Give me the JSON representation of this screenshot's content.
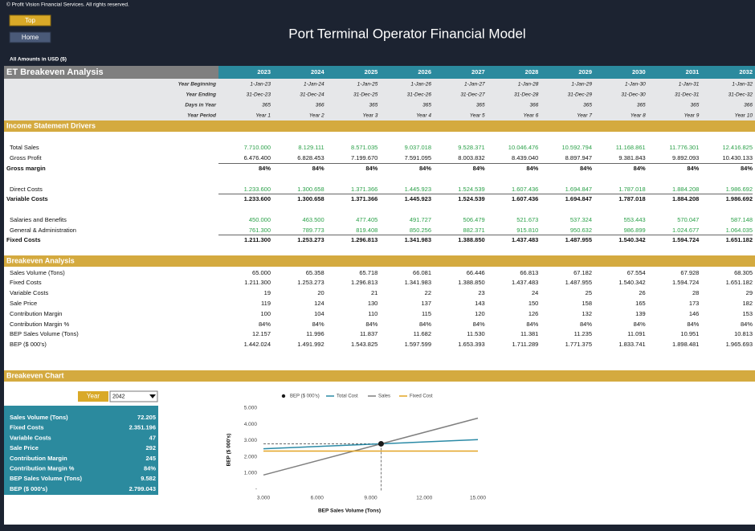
{
  "header": {
    "copyright": "© Profit Vision Financial Services. All rights reserved.",
    "buttons": [
      "Top",
      "Home"
    ],
    "title": "Port Terminal Operator Financial Model",
    "units": "All Amounts in  USD ($)"
  },
  "table": {
    "title": "ET Breakeven Analysis",
    "years": [
      "2023",
      "2024",
      "2025",
      "2026",
      "2027",
      "2028",
      "2029",
      "2030",
      "2031",
      "2032"
    ],
    "info_rows": [
      {
        "label": "Year Beginning",
        "values": [
          "1-Jan-23",
          "1-Jan-24",
          "1-Jan-25",
          "1-Jan-26",
          "1-Jan-27",
          "1-Jan-28",
          "1-Jan-29",
          "1-Jan-30",
          "1-Jan-31",
          "1-Jan-32"
        ]
      },
      {
        "label": "Year Ending",
        "values": [
          "31-Dec-23",
          "31-Dec-24",
          "31-Dec-25",
          "31-Dec-26",
          "31-Dec-27",
          "31-Dec-28",
          "31-Dec-29",
          "31-Dec-30",
          "31-Dec-31",
          "31-Dec-32"
        ]
      },
      {
        "label": "Days in Year",
        "values": [
          "365",
          "366",
          "365",
          "365",
          "365",
          "366",
          "365",
          "365",
          "365",
          "366"
        ]
      },
      {
        "label": "Year Period",
        "values": [
          "Year 1",
          "Year 2",
          "Year 3",
          "Year 4",
          "Year 5",
          "Year 6",
          "Year 7",
          "Year 8",
          "Year 9",
          "Year 10"
        ]
      }
    ],
    "sections": [
      {
        "title": "Income Statement Drivers",
        "rows": [
          {
            "label": "Total Sales",
            "color": "#2aa048",
            "values": [
              "7.710.000",
              "8.129.111",
              "8.571.035",
              "9.037.018",
              "9.528.371",
              "10.046.476",
              "10.592.794",
              "11.168.861",
              "11.776.301",
              "12.416.825"
            ]
          },
          {
            "label": "Gross Profit",
            "values": [
              "6.476.400",
              "6.828.453",
              "7.199.670",
              "7.591.095",
              "8.003.832",
              "8.439.040",
              "8.897.947",
              "9.381.843",
              "9.892.093",
              "10.430.133"
            ]
          },
          {
            "label": "Gross margin",
            "total": true,
            "values": [
              "84%",
              "84%",
              "84%",
              "84%",
              "84%",
              "84%",
              "84%",
              "84%",
              "84%",
              "84%"
            ]
          },
          {
            "label": "Direct Costs",
            "color": "#2aa048",
            "values": [
              "1.233.600",
              "1.300.658",
              "1.371.366",
              "1.445.923",
              "1.524.539",
              "1.607.436",
              "1.694.847",
              "1.787.018",
              "1.884.208",
              "1.986.692"
            ]
          },
          {
            "label": "Variable Costs",
            "total": true,
            "values": [
              "1.233.600",
              "1.300.658",
              "1.371.366",
              "1.445.923",
              "1.524.539",
              "1.607.436",
              "1.694.847",
              "1.787.018",
              "1.884.208",
              "1.986.692"
            ]
          },
          {
            "label": "Salaries and Benefits",
            "color": "#2aa048",
            "values": [
              "450.000",
              "463.500",
              "477.405",
              "491.727",
              "506.479",
              "521.673",
              "537.324",
              "553.443",
              "570.047",
              "587.148"
            ]
          },
          {
            "label": "General & Administration",
            "color": "#2aa048",
            "values": [
              "761.300",
              "789.773",
              "819.408",
              "850.256",
              "882.371",
              "915.810",
              "950.632",
              "986.899",
              "1.024.677",
              "1.064.035"
            ]
          },
          {
            "label": "Fixed Costs",
            "total": true,
            "values": [
              "1.211.300",
              "1.253.273",
              "1.296.813",
              "1.341.983",
              "1.388.850",
              "1.437.483",
              "1.487.955",
              "1.540.342",
              "1.594.724",
              "1.651.182"
            ]
          }
        ]
      },
      {
        "title": "Breakeven Analysis",
        "rows": [
          {
            "label": "Sales Volume (Tons)",
            "values": [
              "65.000",
              "65.358",
              "65.718",
              "66.081",
              "66.446",
              "66.813",
              "67.182",
              "67.554",
              "67.928",
              "68.305"
            ]
          },
          {
            "label": "Fixed Costs",
            "values": [
              "1.211.300",
              "1.253.273",
              "1.296.813",
              "1.341.983",
              "1.388.850",
              "1.437.483",
              "1.487.955",
              "1.540.342",
              "1.594.724",
              "1.651.182"
            ]
          },
          {
            "label": "Variable Costs",
            "values": [
              "19",
              "20",
              "21",
              "22",
              "23",
              "24",
              "25",
              "26",
              "28",
              "29"
            ]
          },
          {
            "label": "Sale Price",
            "values": [
              "119",
              "124",
              "130",
              "137",
              "143",
              "150",
              "158",
              "165",
              "173",
              "182"
            ]
          },
          {
            "label": "Contribution Margin",
            "values": [
              "100",
              "104",
              "110",
              "115",
              "120",
              "126",
              "132",
              "139",
              "146",
              "153"
            ]
          },
          {
            "label": "Contribution Margin %",
            "values": [
              "84%",
              "84%",
              "84%",
              "84%",
              "84%",
              "84%",
              "84%",
              "84%",
              "84%",
              "84%"
            ]
          },
          {
            "label": "BEP Sales Volume (Tons)",
            "values": [
              "12.157",
              "11.996",
              "11.837",
              "11.682",
              "11.530",
              "11.381",
              "11.235",
              "11.091",
              "10.951",
              "10.813"
            ]
          },
          {
            "label": "BEP ($ 000's)",
            "values": [
              "1.442.024",
              "1.491.992",
              "1.543.825",
              "1.597.599",
              "1.653.393",
              "1.711.289",
              "1.771.375",
              "1.833.741",
              "1.898.481",
              "1.965.693"
            ]
          }
        ]
      }
    ]
  },
  "chart_panel": {
    "title": "Breakeven Chart",
    "year_label": "Year",
    "year": "2042",
    "summary": [
      {
        "label": "Sales Volume (Tons)",
        "value": "72.205"
      },
      {
        "label": "Fixed Costs",
        "value": "2.351.196"
      },
      {
        "label": "Variable Costs",
        "value": "47"
      },
      {
        "label": "Sale Price",
        "value": "292"
      },
      {
        "label": "Contribution Margin",
        "value": "245"
      },
      {
        "label": "Contribution Margin %",
        "value": "84%"
      },
      {
        "label": "BEP Sales Volume (Tons)",
        "value": "9.582"
      },
      {
        "label": "BEP ($ 000's)",
        "value": "2.799.043"
      }
    ]
  },
  "chart_data": {
    "type": "line",
    "x_label": "BEP Sales Volume (Tons)",
    "y_label": "BEP ($ 000's)",
    "xlim": [
      3000,
      15000
    ],
    "ylim": [
      0,
      5000
    ],
    "xticks": [
      {
        "value": 3000,
        "label": "3.000"
      },
      {
        "value": 6000,
        "label": "6.000"
      },
      {
        "value": 9000,
        "label": "9.000"
      },
      {
        "value": 12000,
        "label": "12.000"
      },
      {
        "value": 15000,
        "label": "15.000"
      }
    ],
    "yticks": [
      {
        "value": 0,
        "label": "-"
      },
      {
        "value": 1000,
        "label": "1.000"
      },
      {
        "value": 2000,
        "label": "2.000"
      },
      {
        "value": 3000,
        "label": "3.000"
      },
      {
        "value": 4000,
        "label": "4.000"
      },
      {
        "value": 5000,
        "label": "5.000"
      }
    ],
    "series": [
      {
        "name": "BEP ($ 000's)",
        "color": "#1a1a1a",
        "x": [
          9582
        ],
        "values": [
          2799
        ]
      },
      {
        "name": "Total Cost",
        "color": "#2b8aa6",
        "x": [
          3000,
          15000
        ],
        "values": [
          2492,
          3056
        ]
      },
      {
        "name": "Sales",
        "color": "#7f7f7f",
        "x": [
          3000,
          15000
        ],
        "values": [
          876,
          4380
        ]
      },
      {
        "name": "Fixed Cost",
        "color": "#e3a422",
        "x": [
          3000,
          15000
        ],
        "values": [
          2351,
          2351
        ]
      }
    ]
  }
}
